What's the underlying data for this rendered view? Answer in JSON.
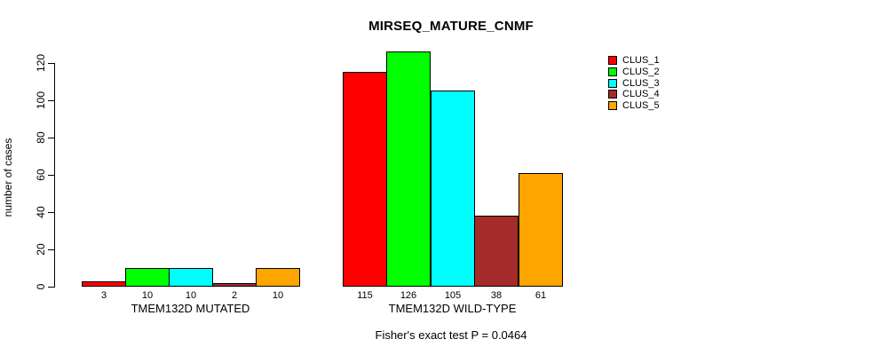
{
  "title": "MIRSEQ_MATURE_CNMF",
  "y_axis": {
    "label": "number of cases",
    "ticks": [
      0,
      20,
      40,
      60,
      80,
      100,
      120
    ]
  },
  "footer": "Fisher's exact test P = 0.0464",
  "legend": {
    "items": [
      {
        "label": "CLUS_1",
        "color": "#FF0000"
      },
      {
        "label": "CLUS_2",
        "color": "#00FF00"
      },
      {
        "label": "CLUS_3",
        "color": "#00FFFF"
      },
      {
        "label": "CLUS_4",
        "color": "#A52A2A"
      },
      {
        "label": "CLUS_5",
        "color": "#FFA500"
      }
    ]
  },
  "chart_data": {
    "type": "bar",
    "title": "MIRSEQ_MATURE_CNMF",
    "xlabel": "",
    "ylabel": "number of cases",
    "ylim": [
      0,
      126
    ],
    "yticks": [
      0,
      20,
      40,
      60,
      80,
      100,
      120
    ],
    "grid": false,
    "legend_position": "right",
    "series_names": [
      "CLUS_1",
      "CLUS_2",
      "CLUS_3",
      "CLUS_4",
      "CLUS_5"
    ],
    "series_colors": [
      "#FF0000",
      "#00FF00",
      "#00FFFF",
      "#A52A2A",
      "#FFA500"
    ],
    "groups": [
      {
        "label": "TMEM132D MUTATED",
        "values": [
          3,
          10,
          10,
          2,
          10
        ]
      },
      {
        "label": "TMEM132D WILD-TYPE",
        "values": [
          115,
          126,
          105,
          38,
          61
        ]
      }
    ],
    "bar_value_labels_shown": true,
    "annotation": "Fisher's exact test P = 0.0464"
  }
}
